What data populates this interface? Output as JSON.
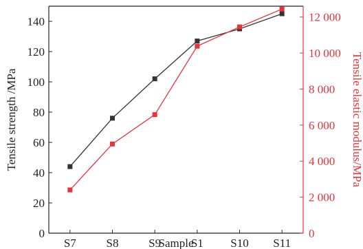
{
  "chart_data": {
    "type": "line",
    "categories": [
      "S7",
      "S8",
      "S9",
      "S1",
      "S10",
      "S11"
    ],
    "xlabel": "Sample",
    "y_left": {
      "label": "Tensile strength /MPa",
      "ylim": [
        0,
        150
      ],
      "ticks": [
        0,
        20,
        40,
        60,
        80,
        100,
        120,
        140
      ],
      "tick_labels": [
        "0",
        "20",
        "40",
        "60",
        "80",
        "100",
        "120",
        "140"
      ],
      "color": "#333333"
    },
    "y_right": {
      "label": "Tensile elastic modulus/MPa",
      "ylim": [
        0,
        12600
      ],
      "ticks": [
        0,
        2000,
        4000,
        6000,
        8000,
        10000,
        12000
      ],
      "tick_labels": [
        "0",
        "2 000",
        "4 000",
        "6 000",
        "8 000",
        "10 000",
        "12 000"
      ],
      "color": "#e8333a"
    },
    "series": [
      {
        "axis": "left",
        "values": [
          44,
          76,
          102,
          127,
          135,
          145
        ],
        "color": "#333333"
      },
      {
        "axis": "right",
        "values": [
          2400,
          4950,
          6580,
          10380,
          11450,
          12440
        ],
        "color": "#e8333a"
      }
    ],
    "grid": false
  }
}
